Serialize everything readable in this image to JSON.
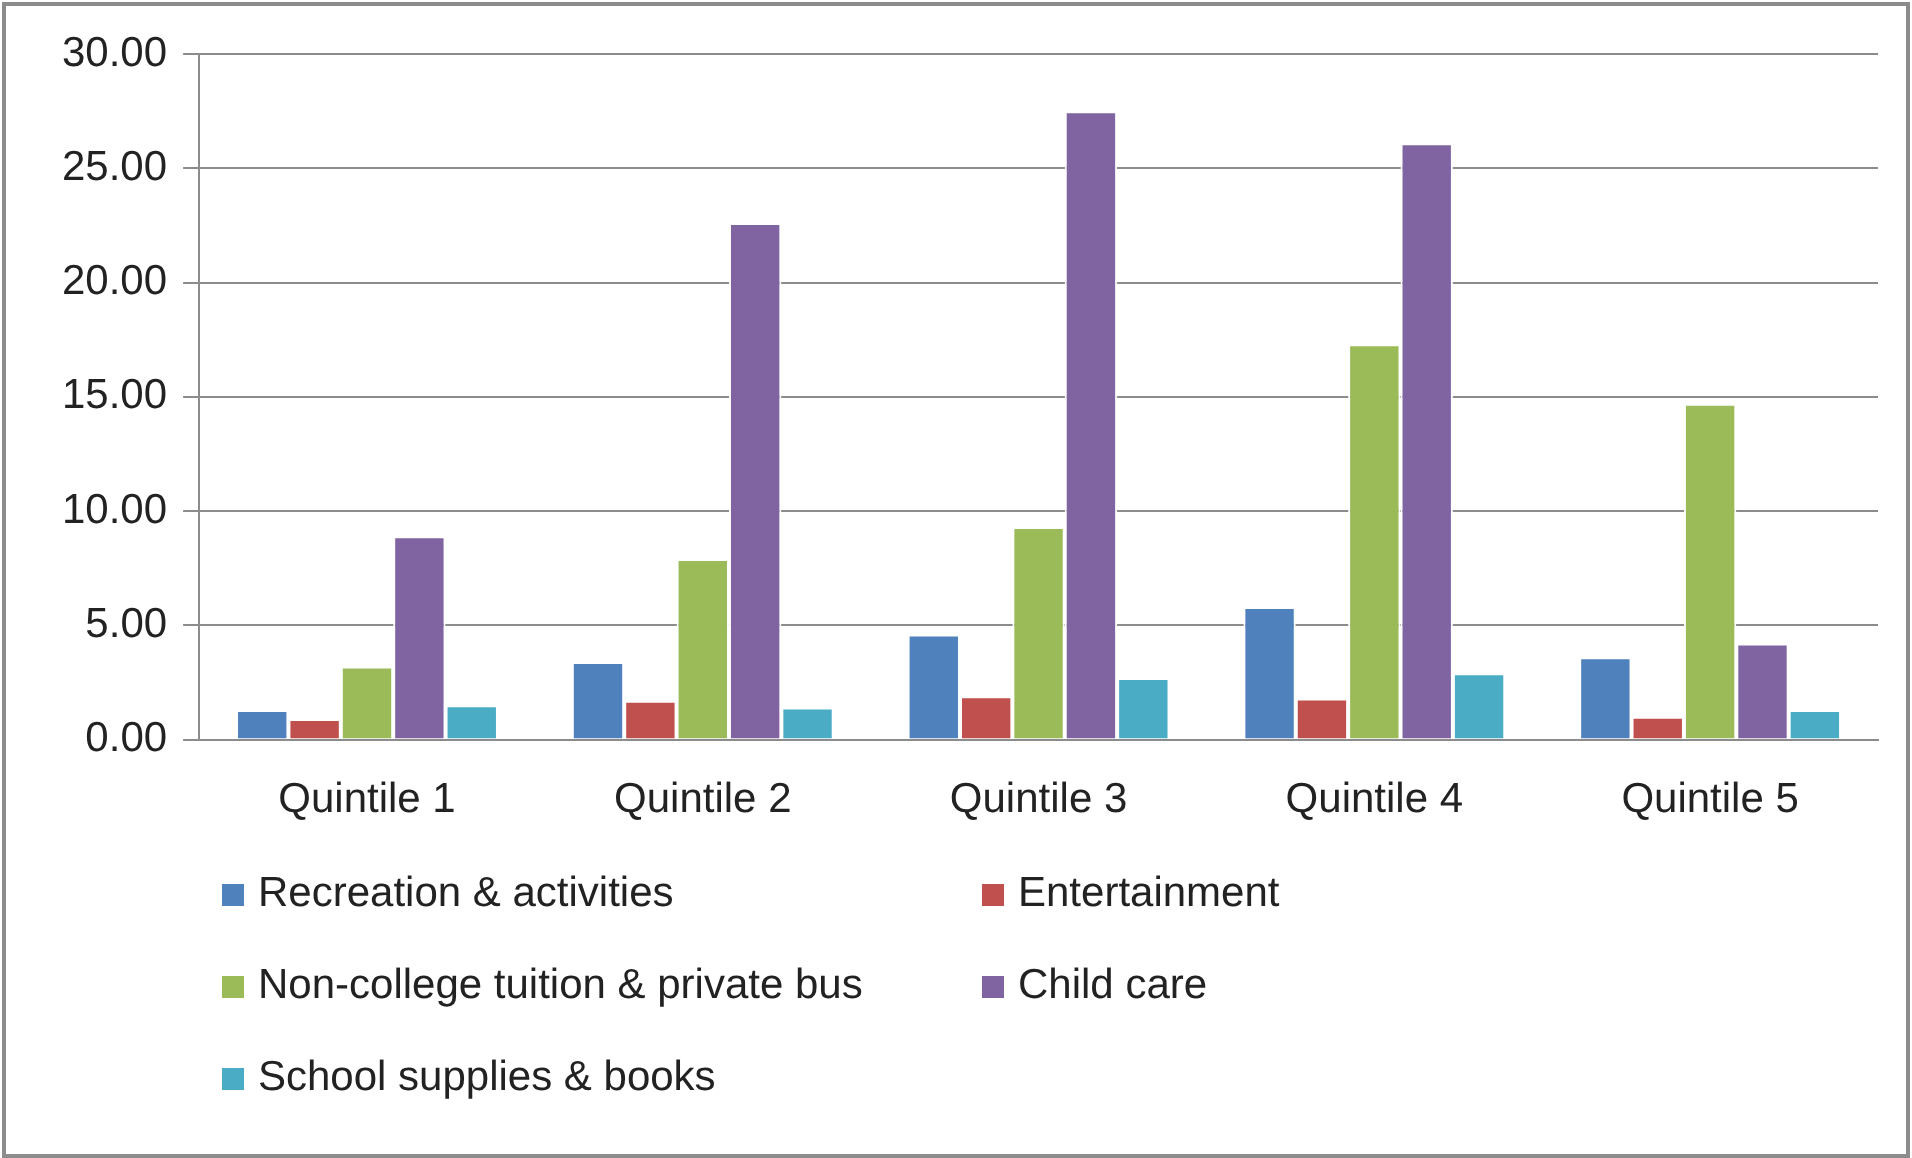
{
  "chart_data": {
    "type": "bar",
    "categories": [
      "Quintile 1",
      "Quintile 2",
      "Quintile 3",
      "Quintile 4",
      "Quintile 5"
    ],
    "series": [
      {
        "name": "Recreation & activities",
        "color": "#4f81bd",
        "values": [
          1.3,
          3.4,
          4.6,
          5.8,
          3.6
        ]
      },
      {
        "name": "Entertainment",
        "color": "#c0504d",
        "values": [
          0.9,
          1.7,
          1.9,
          1.8,
          1.0
        ]
      },
      {
        "name": "Non-college tuition & private bus",
        "color": "#9bbb59",
        "values": [
          3.2,
          7.9,
          9.3,
          17.3,
          14.7
        ]
      },
      {
        "name": "Child care",
        "color": "#8064a2",
        "values": [
          8.9,
          22.6,
          27.5,
          26.1,
          4.2
        ]
      },
      {
        "name": "School supplies & books",
        "color": "#4bacc6",
        "values": [
          1.5,
          1.4,
          2.7,
          2.9,
          1.3
        ]
      }
    ],
    "ylim": [
      0,
      30
    ],
    "yticks": [
      {
        "value": 0,
        "label": "0.00"
      },
      {
        "value": 5,
        "label": "5.00"
      },
      {
        "value": 10,
        "label": "10.00"
      },
      {
        "value": 15,
        "label": "15.00"
      },
      {
        "value": 20,
        "label": "20.00"
      },
      {
        "value": 25,
        "label": "25.00"
      },
      {
        "value": 30,
        "label": "30.00"
      }
    ],
    "grid": "y",
    "legend": "bottom"
  }
}
